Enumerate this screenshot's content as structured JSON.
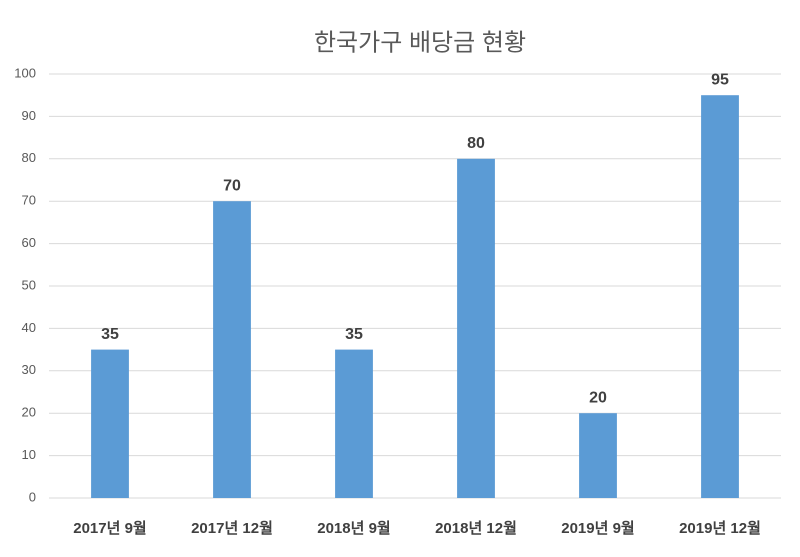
{
  "chart_data": {
    "type": "bar",
    "title": "한국가구 배당금 현황",
    "categories": [
      "2017년 9월",
      "2017년 12월",
      "2018년 9월",
      "2018년 12월",
      "2019년 9월",
      "2019년 12월"
    ],
    "values": [
      35,
      70,
      35,
      80,
      20,
      95
    ],
    "color": "#5b9bd5",
    "ylim": [
      0,
      100
    ],
    "yticks": [
      0,
      10,
      20,
      30,
      40,
      50,
      60,
      70,
      80,
      90,
      100
    ],
    "grid": true
  }
}
